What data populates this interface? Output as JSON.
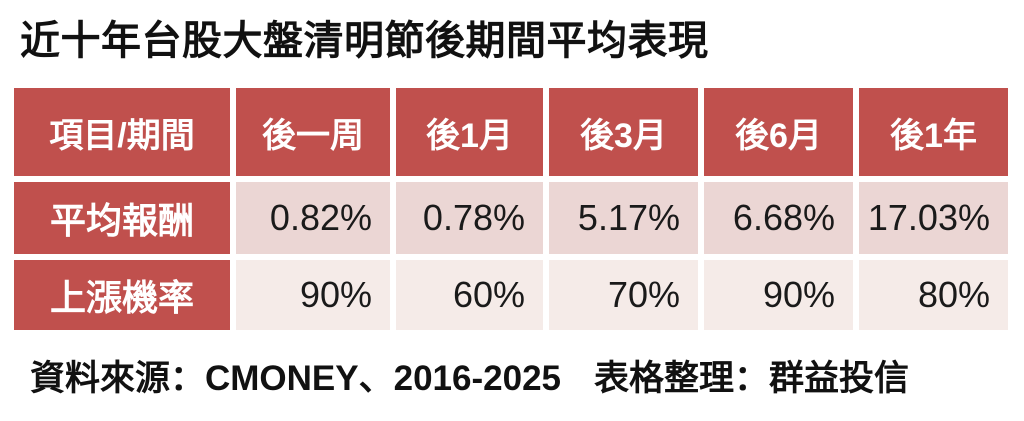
{
  "title": "近十年台股大盤清明節後期間平均表現",
  "table": {
    "header": [
      "項目/期間",
      "後一周",
      "後1月",
      "後3月",
      "後6月",
      "後1年"
    ],
    "rows": [
      {
        "label": "平均報酬",
        "values": [
          "0.82%",
          "0.78%",
          "5.17%",
          "6.68%",
          "17.03%"
        ]
      },
      {
        "label": "上漲機率",
        "values": [
          "90%",
          "60%",
          "70%",
          "90%",
          "80%"
        ]
      }
    ]
  },
  "footer": {
    "source": "資料來源：CMONEY、2016-2025",
    "credit": "表格整理：群益投信"
  },
  "colors": {
    "header_bg": "#C0504D",
    "row_label_bg": "#C0504D",
    "row1_bg": "#EBD6D4",
    "row2_bg": "#F5EBE8",
    "header_text": "#FFFFFF",
    "body_text": "#1A1A1A",
    "page_bg": "#FFFFFF"
  },
  "chart_data": {
    "type": "table",
    "title": "近十年台股大盤清明節後期間平均表現",
    "columns": [
      "項目/期間",
      "後一周",
      "後1月",
      "後3月",
      "後6月",
      "後1年"
    ],
    "rows": [
      {
        "label": "平均報酬",
        "values": [
          "0.82%",
          "0.78%",
          "5.17%",
          "6.68%",
          "17.03%"
        ]
      },
      {
        "label": "上漲機率",
        "values": [
          "90%",
          "60%",
          "70%",
          "90%",
          "80%"
        ]
      }
    ],
    "source": "資料來源：CMONEY、2016-2025",
    "credit": "表格整理：群益投信",
    "layout": {
      "banded_rows": true,
      "header_style": "solid-red",
      "grid": "white-gaps"
    }
  }
}
